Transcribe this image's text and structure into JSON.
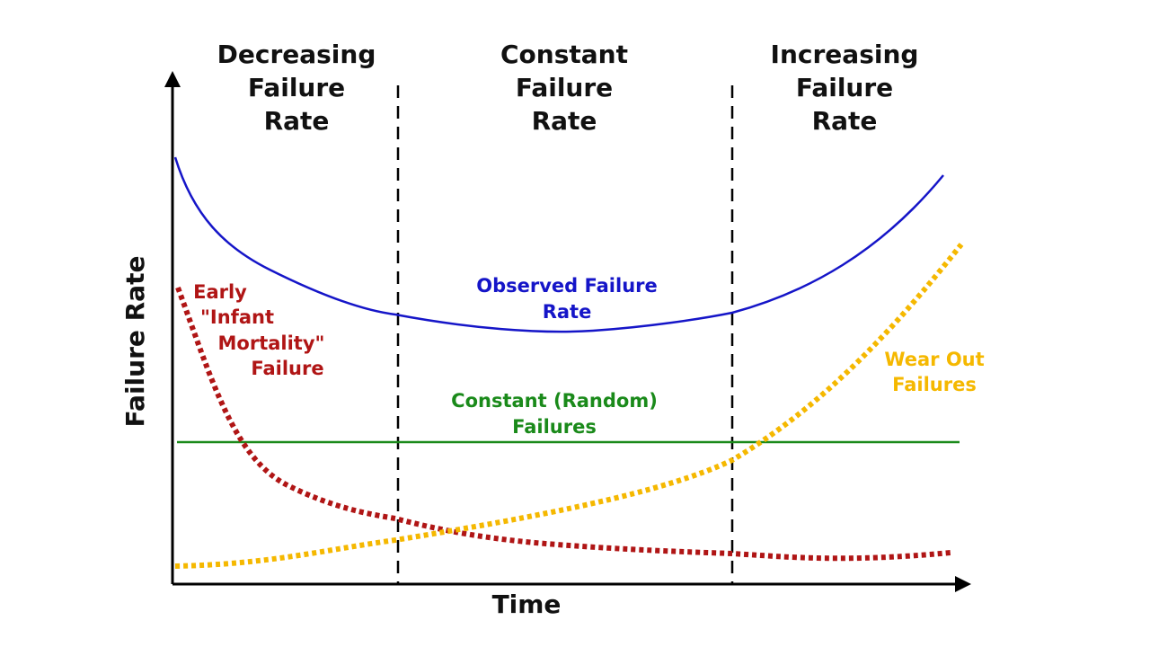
{
  "regions": [
    {
      "lines": [
        "Decreasing",
        "Failure",
        "Rate"
      ]
    },
    {
      "lines": [
        "Constant",
        "Failure",
        "Rate"
      ]
    },
    {
      "lines": [
        "Increasing",
        "Failure",
        "Rate"
      ]
    }
  ],
  "curves": {
    "observed": {
      "lines": [
        "Observed Failure",
        "Rate"
      ]
    },
    "infant": {
      "lines": [
        "Early",
        "\"Infant",
        "Mortality\"",
        "Failure"
      ]
    },
    "constant": {
      "lines": [
        "Constant (Random)",
        "Failures"
      ]
    },
    "wearout": {
      "lines": [
        "Wear Out",
        "Failures"
      ]
    }
  },
  "axes": {
    "x_label": "Time",
    "y_label": "Failure Rate"
  }
}
